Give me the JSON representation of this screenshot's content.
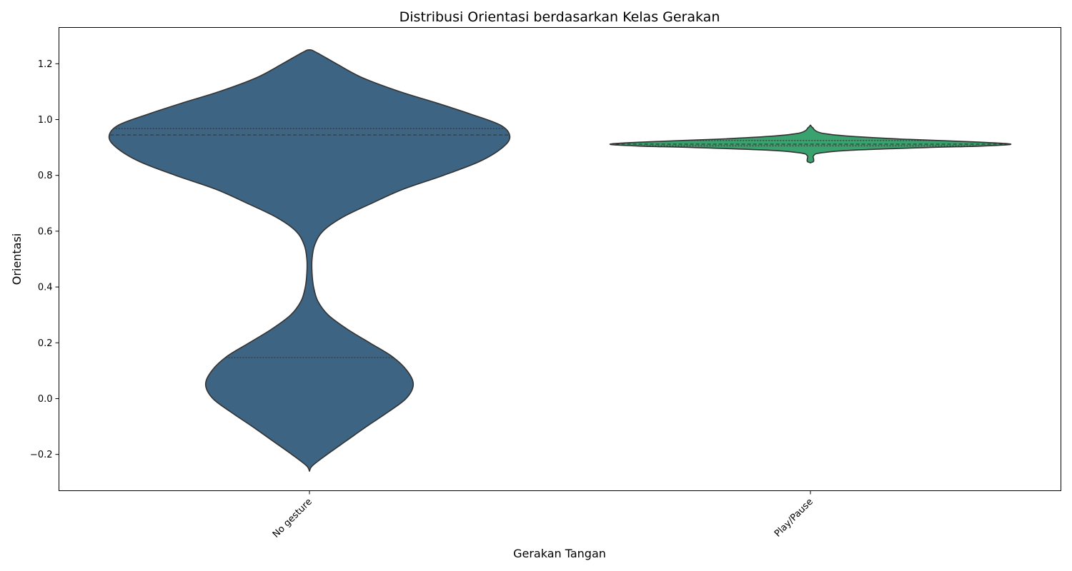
{
  "chart_data": {
    "type": "violin",
    "title": "Distribusi Orientasi berdasarkan Kelas Gerakan",
    "xlabel": "Gerakan Tangan",
    "ylabel": "Orientasi",
    "categories": [
      "No gesture",
      "Play/Pause"
    ],
    "ylim": [
      -0.33,
      1.33
    ],
    "yticks": [
      -0.2,
      0.0,
      0.2,
      0.4,
      0.6,
      0.8,
      1.0,
      1.2
    ],
    "ytick_labels": [
      "−0.2",
      "0.0",
      "0.2",
      "0.4",
      "0.6",
      "0.8",
      "1.0",
      "1.2"
    ],
    "grid": false,
    "inner": "quartile",
    "colors": [
      "#3d6482",
      "#39a26e"
    ],
    "edge_color": "#333333",
    "series": [
      {
        "category": "No gesture",
        "color": "#3d6482",
        "min": -0.26,
        "max": 1.25,
        "quartiles": {
          "q1": 0.147,
          "median": 0.945,
          "q3": 0.968
        },
        "density": [
          [
            -0.26,
            0.0
          ],
          [
            -0.24,
            0.03
          ],
          [
            -0.2,
            0.17
          ],
          [
            -0.15,
            0.36
          ],
          [
            -0.1,
            0.55
          ],
          [
            -0.05,
            0.75
          ],
          [
            0.0,
            0.93
          ],
          [
            0.05,
            1.0
          ],
          [
            0.1,
            0.94
          ],
          [
            0.15,
            0.8
          ],
          [
            0.2,
            0.58
          ],
          [
            0.25,
            0.36
          ],
          [
            0.3,
            0.18
          ],
          [
            0.35,
            0.08
          ],
          [
            0.4,
            0.04
          ],
          [
            0.45,
            0.025
          ],
          [
            0.5,
            0.025
          ],
          [
            0.55,
            0.05
          ],
          [
            0.6,
            0.13
          ],
          [
            0.65,
            0.32
          ],
          [
            0.7,
            0.6
          ],
          [
            0.75,
            0.9
          ],
          [
            0.8,
            1.29
          ],
          [
            0.85,
            1.64
          ],
          [
            0.9,
            1.86
          ],
          [
            0.94,
            1.93
          ],
          [
            0.98,
            1.84
          ],
          [
            1.02,
            1.55
          ],
          [
            1.06,
            1.22
          ],
          [
            1.1,
            0.87
          ],
          [
            1.15,
            0.51
          ],
          [
            1.2,
            0.26
          ],
          [
            1.24,
            0.07
          ],
          [
            1.25,
            0.0
          ]
        ]
      },
      {
        "category": "Play/Pause",
        "color": "#39a26e",
        "min": 0.845,
        "max": 0.98,
        "quartiles": {
          "q1": 0.906,
          "median": 0.912,
          "q3": 0.925
        },
        "density": [
          [
            0.845,
            0.0
          ],
          [
            0.85,
            0.03
          ],
          [
            0.86,
            0.03
          ],
          [
            0.87,
            0.03
          ],
          [
            0.88,
            0.09
          ],
          [
            0.89,
            0.39
          ],
          [
            0.9,
            1.15
          ],
          [
            0.905,
            1.65
          ],
          [
            0.912,
            1.93
          ],
          [
            0.92,
            1.58
          ],
          [
            0.93,
            0.88
          ],
          [
            0.94,
            0.39
          ],
          [
            0.95,
            0.13
          ],
          [
            0.96,
            0.05
          ],
          [
            0.97,
            0.025
          ],
          [
            0.975,
            0.01
          ],
          [
            0.98,
            0.0
          ]
        ]
      }
    ]
  }
}
